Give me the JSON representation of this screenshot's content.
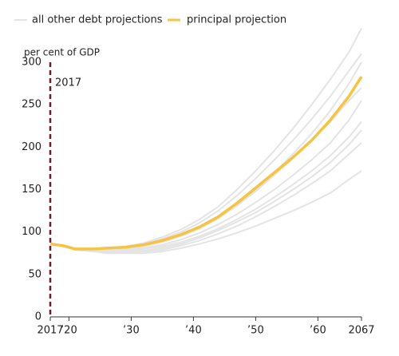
{
  "chart_data": {
    "type": "line",
    "y_axis_label": "per cent of GDP",
    "annotation": "2017",
    "annotation_x": 2017,
    "x": [
      2017,
      2019,
      2021,
      2024,
      2026,
      2029,
      2032,
      2035,
      2038,
      2041,
      2044,
      2047,
      2050,
      2053,
      2056,
      2059,
      2062,
      2065,
      2067
    ],
    "series": [
      {
        "name": "principal projection",
        "color": "#f6c343",
        "values": [
          86,
          84,
          80,
          80,
          81,
          82,
          85,
          90,
          97,
          106,
          118,
          134,
          152,
          170,
          188,
          208,
          232,
          260,
          283
        ]
      }
    ],
    "other_projections": {
      "name": "all other debt projections",
      "color": "#e4e4e4",
      "values_sets": [
        [
          86,
          84,
          80,
          80,
          81,
          83,
          87,
          94,
          103,
          115,
          130,
          150,
          172,
          196,
          222,
          250,
          280,
          312,
          340
        ],
        [
          86,
          84,
          80,
          80,
          81,
          82,
          86,
          92,
          100,
          111,
          125,
          143,
          163,
          185,
          208,
          233,
          260,
          290,
          310
        ],
        [
          86,
          84,
          80,
          79,
          80,
          81,
          84,
          89,
          96,
          105,
          117,
          132,
          150,
          170,
          192,
          216,
          243,
          275,
          300
        ],
        [
          86,
          84,
          80,
          79,
          79,
          80,
          83,
          88,
          95,
          104,
          116,
          131,
          148,
          167,
          187,
          208,
          230,
          255,
          270
        ],
        [
          86,
          84,
          79,
          78,
          78,
          79,
          81,
          85,
          91,
          99,
          109,
          121,
          135,
          150,
          167,
          185,
          205,
          232,
          255
        ],
        [
          86,
          84,
          79,
          78,
          78,
          78,
          80,
          83,
          88,
          95,
          104,
          115,
          127,
          141,
          156,
          172,
          190,
          212,
          230
        ],
        [
          86,
          84,
          79,
          77,
          77,
          77,
          78,
          81,
          86,
          93,
          102,
          112,
          123,
          136,
          150,
          165,
          182,
          203,
          220
        ],
        [
          86,
          84,
          79,
          77,
          76,
          76,
          77,
          79,
          84,
          90,
          98,
          107,
          118,
          130,
          143,
          157,
          172,
          192,
          205
        ],
        [
          86,
          84,
          79,
          77,
          75,
          75,
          75,
          77,
          81,
          86,
          92,
          99,
          107,
          116,
          125,
          135,
          146,
          162,
          172
        ]
      ]
    },
    "xlim": [
      2017,
      2067
    ],
    "xticks": [
      2017,
      {
        "value": 2020,
        "label": "’20"
      },
      {
        "value": 2030,
        "label": "’30"
      },
      {
        "value": 2040,
        "label": "’40"
      },
      {
        "value": 2050,
        "label": "’50"
      },
      {
        "value": 2060,
        "label": "’60"
      },
      2067
    ],
    "ylim": [
      0,
      300
    ],
    "yticks": [
      0,
      50,
      100,
      150,
      200,
      250,
      300
    ],
    "grid": false
  }
}
